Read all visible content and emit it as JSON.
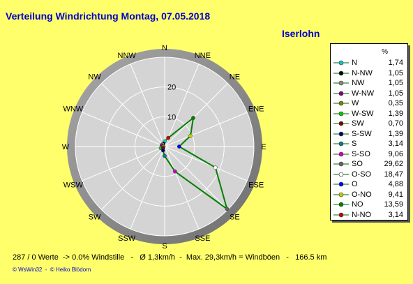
{
  "header": {
    "title": "Verteilung Windrichtung    Montag, 07.05.2018",
    "station": "Iserlohn"
  },
  "chart_data": {
    "type": "radar",
    "directions": [
      "N",
      "NNE",
      "NE",
      "ENE",
      "E",
      "ESE",
      "SE",
      "SSE",
      "S",
      "SSW",
      "SW",
      "WSW",
      "W",
      "WNW",
      "NW",
      "NNW"
    ],
    "radius_ticks": [
      "10",
      "20"
    ],
    "rmax": 30,
    "values": [
      1.74,
      3.14,
      13.59,
      9.41,
      4.88,
      18.47,
      29.62,
      9.06,
      3.14,
      1.39,
      0.7,
      1.39,
      0.35,
      1.05,
      1.05,
      1.05
    ],
    "line_color": "#008000"
  },
  "legend": {
    "header": "%",
    "items": [
      {
        "label": "N",
        "value": "1,74",
        "color": "#00cccc"
      },
      {
        "label": "N-NW",
        "value": "1,05",
        "color": "#000000"
      },
      {
        "label": "NW",
        "value": "1,05",
        "color": "#888888"
      },
      {
        "label": "W-NW",
        "value": "1,05",
        "color": "#800080"
      },
      {
        "label": "W",
        "value": "0,35",
        "color": "#808000"
      },
      {
        "label": "W-SW",
        "value": "1,39",
        "color": "#00cc00"
      },
      {
        "label": "SW",
        "value": "0,70",
        "color": "#800000"
      },
      {
        "label": "S-SW",
        "value": "1,39",
        "color": "#000080"
      },
      {
        "label": "S",
        "value": "3,14",
        "color": "#008080"
      },
      {
        "label": "S-SO",
        "value": "9,06",
        "color": "#cc00cc"
      },
      {
        "label": "SO",
        "value": "29,62",
        "color": "#666666"
      },
      {
        "label": "O-SO",
        "value": "18,47",
        "color": "#ffffff"
      },
      {
        "label": "O",
        "value": "4,88",
        "color": "#0000ff"
      },
      {
        "label": "O-NO",
        "value": "9,41",
        "color": "#cccc00"
      },
      {
        "label": "NO",
        "value": "13,59",
        "color": "#008000"
      },
      {
        "label": "N-NO",
        "value": "3,14",
        "color": "#cc0000"
      }
    ]
  },
  "footer": {
    "stats": "287 / 0 Werte  -> 0.0% Windstille   -   Ø 1,3km/h  -  Max. 29,3km/h = Windböen   -   166.5 km",
    "credit": "© WsWin32  -  © Heiko Blödorn"
  }
}
